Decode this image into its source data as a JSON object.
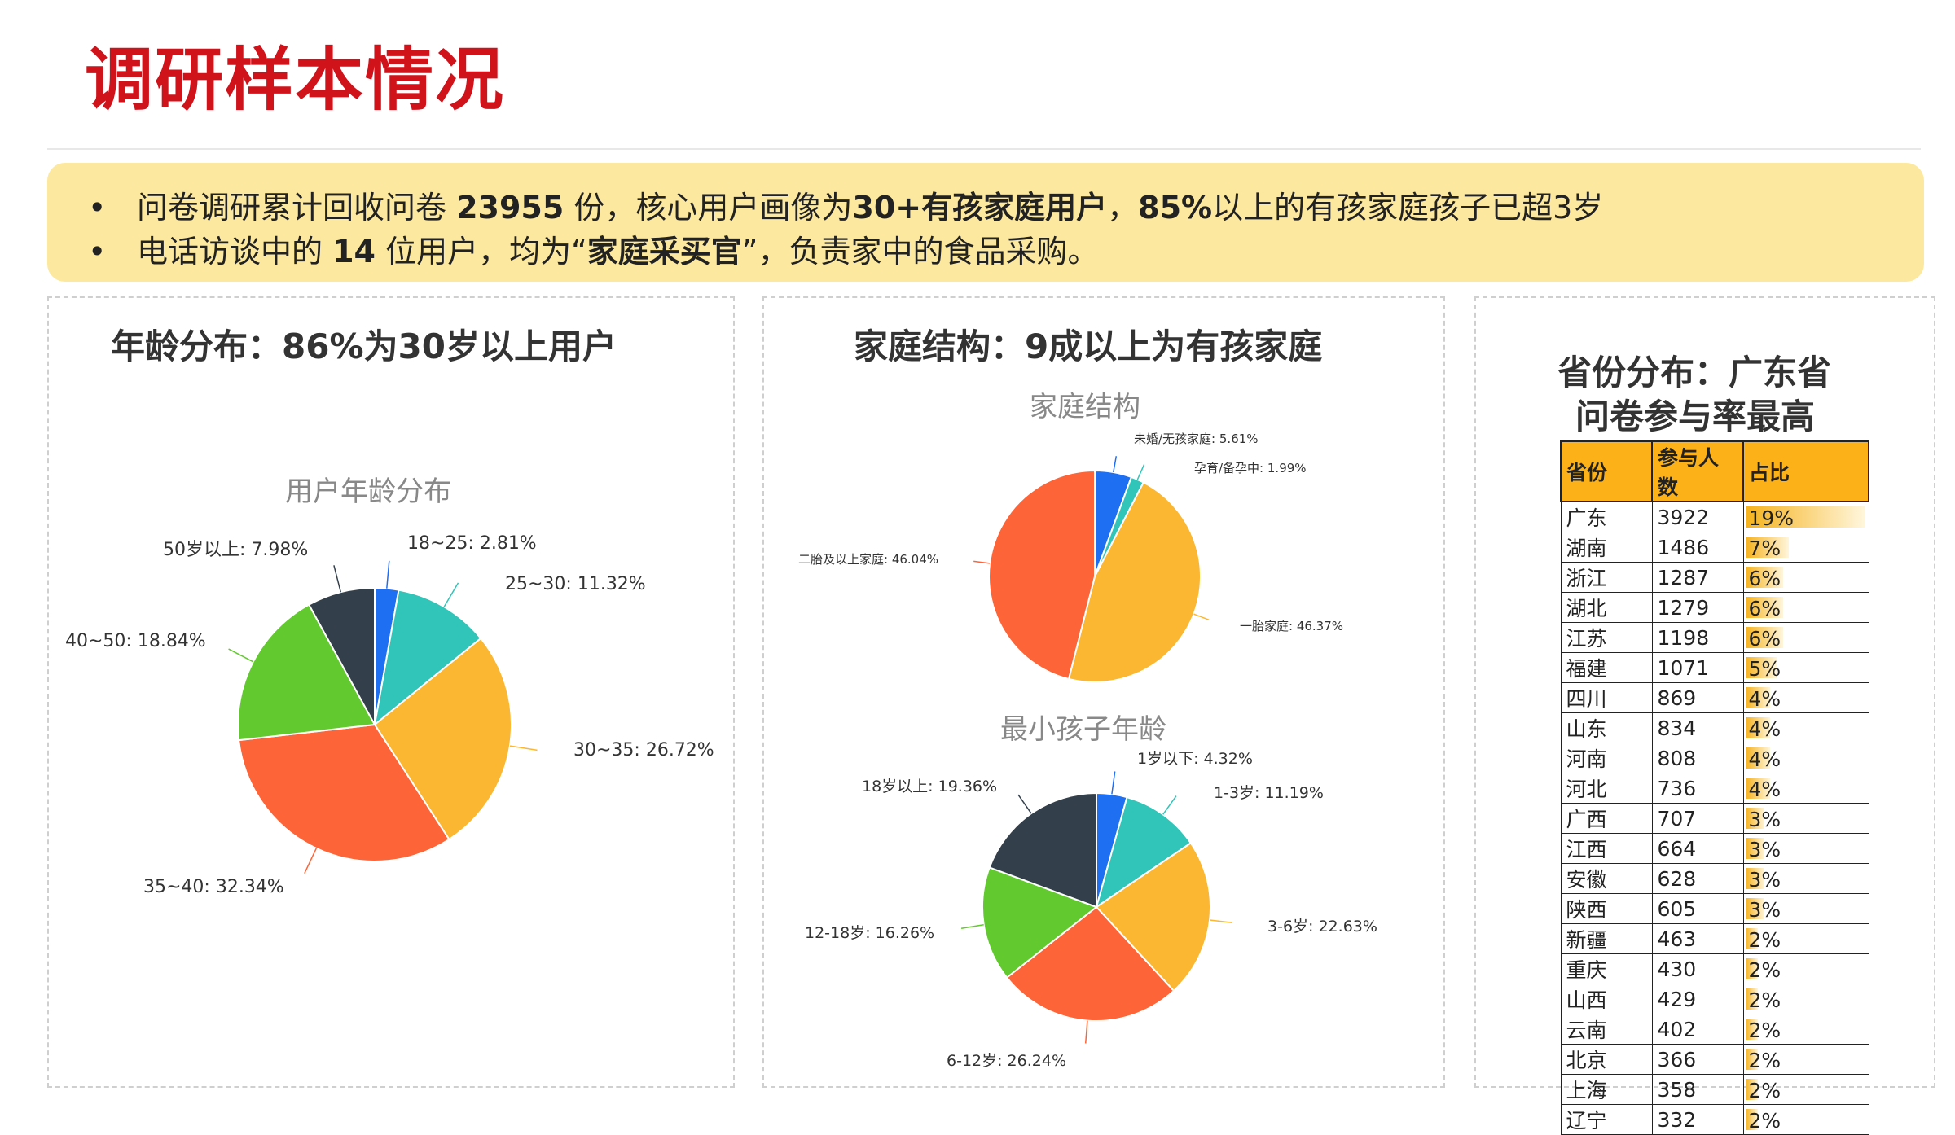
{
  "page": {
    "title": "调研样本情况",
    "summary": {
      "line1": {
        "p1": "问卷调研累计回收问卷 ",
        "b1": "23955",
        "p2": " 份，核心用户画像为",
        "b2": "30+有孩家庭用户",
        "p3": "，",
        "b3": "85%",
        "p4": "以上的有孩家庭孩子已超3岁"
      },
      "line2": {
        "p1": "电话访谈中的 ",
        "b1": "14",
        "p2": " 位用户，均为“",
        "b2": "家庭采买官",
        "p3": "”，负责家中的食品采购。"
      }
    },
    "panels": {
      "age": {
        "heading": "年龄分布：86%为30岁以上用户"
      },
      "family": {
        "heading": "家庭结构：9成以上为有孩家庭"
      },
      "province": {
        "heading_line1": "省份分布：广东省",
        "heading_line2": "问卷参与率最高"
      }
    }
  },
  "chart_data": [
    {
      "type": "pie",
      "title": "用户年龄分布",
      "slices": [
        {
          "label": "18~25",
          "value": 2.81,
          "display": "18~25: 2.81%",
          "color": "#1e6ff2"
        },
        {
          "label": "25~30",
          "value": 11.32,
          "display": "25~30: 11.32%",
          "color": "#31c4b8"
        },
        {
          "label": "30~35",
          "value": 26.72,
          "display": "30~35: 26.72%",
          "color": "#fbb731"
        },
        {
          "label": "35~40",
          "value": 32.34,
          "display": "35~40: 32.34%",
          "color": "#fd6437"
        },
        {
          "label": "40~50",
          "value": 18.84,
          "display": "40~50: 18.84%",
          "color": "#62c92f"
        },
        {
          "label": "50岁以上",
          "value": 7.98,
          "display": "50岁以上: 7.98%",
          "color": "#33404c"
        }
      ]
    },
    {
      "type": "pie",
      "title": "家庭结构",
      "slices": [
        {
          "label": "未婚/无孩家庭",
          "value": 5.61,
          "display": "未婚/无孩家庭: 5.61%",
          "color": "#1e6ff2"
        },
        {
          "label": "孕育/备孕中",
          "value": 1.99,
          "display": "孕育/备孕中: 1.99%",
          "color": "#31c4b8"
        },
        {
          "label": "一胎家庭",
          "value": 46.37,
          "display": "一胎家庭: 46.37%",
          "color": "#fbb731"
        },
        {
          "label": "二胎及以上家庭",
          "value": 46.04,
          "display": "二胎及以上家庭: 46.04%",
          "color": "#fd6437"
        }
      ]
    },
    {
      "type": "pie",
      "title": "最小孩子年龄",
      "slices": [
        {
          "label": "1岁以下",
          "value": 4.32,
          "display": "1岁以下: 4.32%",
          "color": "#1e6ff2"
        },
        {
          "label": "1-3岁",
          "value": 11.19,
          "display": "1-3岁: 11.19%",
          "color": "#31c4b8"
        },
        {
          "label": "3-6岁",
          "value": 22.63,
          "display": "3-6岁: 22.63%",
          "color": "#fbb731"
        },
        {
          "label": "6-12岁",
          "value": 26.24,
          "display": "6-12岁: 26.24%",
          "color": "#fd6437"
        },
        {
          "label": "12-18岁",
          "value": 16.26,
          "display": "12-18岁: 16.26%",
          "color": "#62c92f"
        },
        {
          "label": "18岁以上",
          "value": 19.36,
          "display": "18岁以上: 19.36%",
          "color": "#33404c"
        }
      ]
    },
    {
      "type": "table",
      "columns": [
        "省份",
        "参与人数",
        "占比"
      ],
      "rows": [
        {
          "province": "广东",
          "count": "3922",
          "ratio": "19%",
          "value": 19
        },
        {
          "province": "湖南",
          "count": "1486",
          "ratio": "7%",
          "value": 7
        },
        {
          "province": "浙江",
          "count": "1287",
          "ratio": "6%",
          "value": 6
        },
        {
          "province": "湖北",
          "count": "1279",
          "ratio": "6%",
          "value": 6
        },
        {
          "province": "江苏",
          "count": "1198",
          "ratio": "6%",
          "value": 6
        },
        {
          "province": "福建",
          "count": "1071",
          "ratio": "5%",
          "value": 5
        },
        {
          "province": "四川",
          "count": "869",
          "ratio": "4%",
          "value": 4
        },
        {
          "province": "山东",
          "count": "834",
          "ratio": "4%",
          "value": 4
        },
        {
          "province": "河南",
          "count": "808",
          "ratio": "4%",
          "value": 4
        },
        {
          "province": "河北",
          "count": "736",
          "ratio": "4%",
          "value": 4
        },
        {
          "province": "广西",
          "count": "707",
          "ratio": "3%",
          "value": 3
        },
        {
          "province": "江西",
          "count": "664",
          "ratio": "3%",
          "value": 3
        },
        {
          "province": "安徽",
          "count": "628",
          "ratio": "3%",
          "value": 3
        },
        {
          "province": "陕西",
          "count": "605",
          "ratio": "3%",
          "value": 3
        },
        {
          "province": "新疆",
          "count": "463",
          "ratio": "2%",
          "value": 2
        },
        {
          "province": "重庆",
          "count": "430",
          "ratio": "2%",
          "value": 2
        },
        {
          "province": "山西",
          "count": "429",
          "ratio": "2%",
          "value": 2
        },
        {
          "province": "云南",
          "count": "402",
          "ratio": "2%",
          "value": 2
        },
        {
          "province": "北京",
          "count": "366",
          "ratio": "2%",
          "value": 2
        },
        {
          "province": "上海",
          "count": "358",
          "ratio": "2%",
          "value": 2
        },
        {
          "province": "辽宁",
          "count": "332",
          "ratio": "2%",
          "value": 2
        }
      ]
    }
  ]
}
